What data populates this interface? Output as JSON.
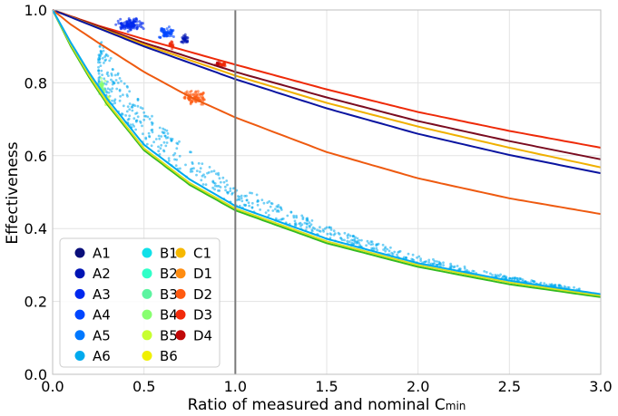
{
  "chart_data": {
    "type": "scatter",
    "title": "",
    "xlabel": "Ratio of measured and nominal C",
    "xlabel_subscript": "min",
    "ylabel": "Effectiveness",
    "xlim": [
      0.0,
      3.0
    ],
    "ylim": [
      0.0,
      1.0
    ],
    "xticks": [
      "0.0",
      "0.5",
      "1.0",
      "1.5",
      "2.0",
      "2.5",
      "3.0"
    ],
    "yticks": [
      "0.0",
      "0.2",
      "0.4",
      "0.6",
      "0.8",
      "1.0"
    ],
    "grid": true,
    "vline_x": 1.0,
    "legend": {
      "placement": "lower-left",
      "columns": 3
    },
    "series": [
      {
        "name": "A1",
        "color": "#0a0f7a"
      },
      {
        "name": "A2",
        "color": "#0014b4"
      },
      {
        "name": "A3",
        "color": "#0028ee"
      },
      {
        "name": "A4",
        "color": "#0046ff"
      },
      {
        "name": "A5",
        "color": "#0078ff"
      },
      {
        "name": "A6",
        "color": "#00aaee"
      },
      {
        "name": "B1",
        "color": "#10e0e8"
      },
      {
        "name": "B2",
        "color": "#30ffc8"
      },
      {
        "name": "B3",
        "color": "#5cf4a0"
      },
      {
        "name": "B4",
        "color": "#88ff70"
      },
      {
        "name": "B5",
        "color": "#c8ff30"
      },
      {
        "name": "B6",
        "color": "#f0f000"
      },
      {
        "name": "C1",
        "color": "#f6b800"
      },
      {
        "name": "D1",
        "color": "#ff8c10"
      },
      {
        "name": "D2",
        "color": "#ff5a10"
      },
      {
        "name": "D3",
        "color": "#f22a0a"
      },
      {
        "name": "D4",
        "color": "#c00808"
      }
    ],
    "curves": [
      {
        "color": "#ee2a08",
        "points": [
          [
            0,
            1.0
          ],
          [
            0.25,
            0.957
          ],
          [
            0.5,
            0.92
          ],
          [
            1.0,
            0.85
          ],
          [
            1.5,
            0.782
          ],
          [
            2.0,
            0.72
          ],
          [
            2.5,
            0.668
          ],
          [
            3.0,
            0.622
          ]
        ]
      },
      {
        "color": "#7a0c20",
        "points": [
          [
            0,
            1.0
          ],
          [
            0.25,
            0.955
          ],
          [
            0.5,
            0.91
          ],
          [
            1.0,
            0.83
          ],
          [
            1.5,
            0.76
          ],
          [
            2.0,
            0.695
          ],
          [
            2.5,
            0.64
          ],
          [
            3.0,
            0.59
          ]
        ]
      },
      {
        "color": "#f0b000",
        "points": [
          [
            0,
            1.0
          ],
          [
            0.25,
            0.952
          ],
          [
            0.5,
            0.905
          ],
          [
            1.0,
            0.82
          ],
          [
            1.5,
            0.745
          ],
          [
            2.0,
            0.68
          ],
          [
            2.5,
            0.622
          ],
          [
            3.0,
            0.568
          ]
        ]
      },
      {
        "color": "#0a14a0",
        "points": [
          [
            0,
            1.0
          ],
          [
            0.25,
            0.95
          ],
          [
            0.5,
            0.9
          ],
          [
            1.0,
            0.81
          ],
          [
            1.5,
            0.73
          ],
          [
            2.0,
            0.66
          ],
          [
            2.5,
            0.602
          ],
          [
            3.0,
            0.552
          ]
        ]
      },
      {
        "color": "#ee5a10",
        "points": [
          [
            0,
            1.0
          ],
          [
            0.1,
            0.96
          ],
          [
            0.25,
            0.91
          ],
          [
            0.5,
            0.83
          ],
          [
            0.75,
            0.762
          ],
          [
            1.0,
            0.705
          ],
          [
            1.5,
            0.61
          ],
          [
            2.0,
            0.538
          ],
          [
            2.5,
            0.483
          ],
          [
            3.0,
            0.44
          ]
        ]
      },
      {
        "color": "#33bb22",
        "points": [
          [
            0,
            1.0
          ],
          [
            0.1,
            0.9
          ],
          [
            0.2,
            0.815
          ],
          [
            0.3,
            0.74
          ],
          [
            0.5,
            0.615
          ],
          [
            0.75,
            0.52
          ],
          [
            1.0,
            0.45
          ],
          [
            1.5,
            0.36
          ],
          [
            2.0,
            0.295
          ],
          [
            2.5,
            0.247
          ],
          [
            3.0,
            0.212
          ]
        ]
      },
      {
        "color": "#d8e020",
        "points": [
          [
            0,
            1.0
          ],
          [
            0.1,
            0.905
          ],
          [
            0.2,
            0.82
          ],
          [
            0.3,
            0.745
          ],
          [
            0.5,
            0.62
          ],
          [
            0.75,
            0.525
          ],
          [
            1.0,
            0.455
          ],
          [
            1.5,
            0.365
          ],
          [
            2.0,
            0.3
          ],
          [
            2.5,
            0.252
          ],
          [
            3.0,
            0.216
          ]
        ]
      },
      {
        "color": "#00aaee",
        "points": [
          [
            0,
            1.0
          ],
          [
            0.1,
            0.91
          ],
          [
            0.2,
            0.828
          ],
          [
            0.3,
            0.755
          ],
          [
            0.5,
            0.63
          ],
          [
            0.75,
            0.535
          ],
          [
            1.0,
            0.462
          ],
          [
            1.5,
            0.372
          ],
          [
            2.0,
            0.305
          ],
          [
            2.5,
            0.257
          ],
          [
            3.0,
            0.22
          ]
        ]
      }
    ],
    "clusters": [
      {
        "color": "#0028ee",
        "center": [
          0.42,
          0.96
        ],
        "spread": [
          0.12,
          0.03
        ],
        "n": 120
      },
      {
        "color": "#0046ff",
        "center": [
          0.62,
          0.935
        ],
        "spread": [
          0.08,
          0.03
        ],
        "n": 60
      },
      {
        "color": "#0014b4",
        "center": [
          0.72,
          0.92
        ],
        "spread": [
          0.05,
          0.02
        ],
        "n": 30
      },
      {
        "color": "#ee2a08",
        "center": [
          0.65,
          0.905
        ],
        "spread": [
          0.02,
          0.02
        ],
        "n": 20
      },
      {
        "color": "#ee2a08",
        "center": [
          0.93,
          0.85
        ],
        "spread": [
          0.04,
          0.01
        ],
        "n": 30
      },
      {
        "color": "#c00808",
        "center": [
          0.9,
          0.852
        ],
        "spread": [
          0.02,
          0.01
        ],
        "n": 12
      },
      {
        "color": "#ff5a10",
        "center": [
          0.78,
          0.76
        ],
        "spread": [
          0.13,
          0.03
        ],
        "n": 80
      },
      {
        "color": "#88ff70",
        "center": [
          0.27,
          0.79
        ],
        "spread": [
          0.04,
          0.04
        ],
        "n": 40
      },
      {
        "color": "#c8ff30",
        "center": [
          0.3,
          0.75
        ],
        "spread": [
          0.03,
          0.03
        ],
        "n": 25
      }
    ],
    "band": {
      "color": "#00aaee",
      "x_range": [
        0.25,
        2.9
      ],
      "offset_max": 0.06,
      "n": 650
    }
  }
}
